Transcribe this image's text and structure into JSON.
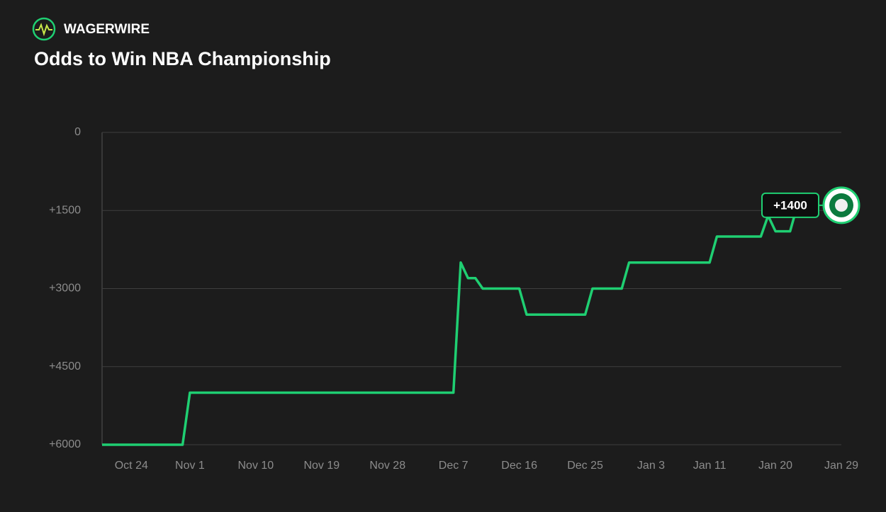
{
  "brand": "WAGERWIRE",
  "chart_data": {
    "type": "line",
    "title": "Odds to Win NBA Championship",
    "x": [
      "Oct 20",
      "Oct 31",
      "Nov 1",
      "Dec 7",
      "Dec 8",
      "Dec 9",
      "Dec 10",
      "Dec 11",
      "Dec 16",
      "Dec 17",
      "Dec 25",
      "Dec 26",
      "Dec 30",
      "Dec 31",
      "Jan 11",
      "Jan 12",
      "Jan 18",
      "Jan 19",
      "Jan 20",
      "Jan 22",
      "Jan 23"
    ],
    "values": [
      6000,
      6000,
      5000,
      5000,
      2500,
      2800,
      2800,
      3000,
      3000,
      3500,
      3500,
      3000,
      3000,
      2500,
      2500,
      2000,
      2000,
      1600,
      1900,
      1900,
      1400
    ],
    "value_labels": [
      null,
      null,
      null,
      null,
      null,
      null,
      null,
      null,
      null,
      null,
      null,
      null,
      null,
      null,
      null,
      null,
      null,
      null,
      null,
      null,
      "+1400"
    ],
    "color": "#1fcf72",
    "xlim": [
      "Oct 20",
      "Jan 29"
    ],
    "xticks": [
      "Oct 24",
      "Nov 1",
      "Nov 10",
      "Nov 19",
      "Nov 28",
      "Dec 7",
      "Dec 16",
      "Dec 25",
      "Jan 3",
      "Jan 11",
      "Jan 20",
      "Jan 29"
    ],
    "ylim": [
      0,
      6000
    ],
    "yticks": [
      0,
      {
        "value": 1500,
        "label": "+1500"
      },
      {
        "value": 3000,
        "label": "+3000"
      },
      {
        "value": 4500,
        "label": "+4500"
      },
      {
        "value": 6000,
        "label": "+6000"
      }
    ],
    "y_inverted": true,
    "grid": true
  }
}
